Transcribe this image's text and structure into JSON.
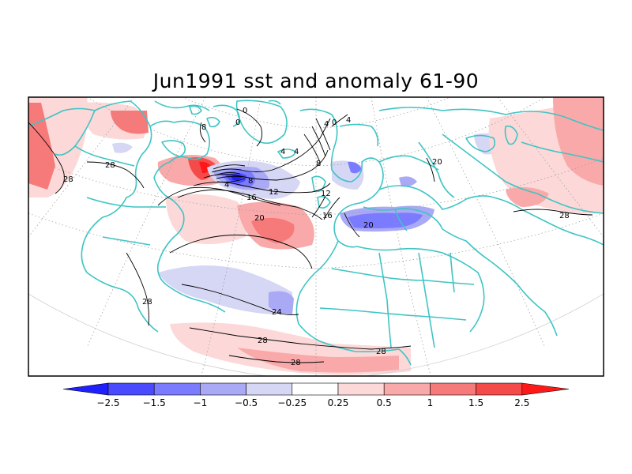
{
  "title": "Jun1991 sst and anomaly 61-90",
  "colors": {
    "coast": "#3fc4c4",
    "frame": "#000000",
    "contour": "#000000",
    "grid": "#9a9a9a",
    "land": "#ffffff",
    "ocean": "#ffffff"
  },
  "colorbar": {
    "levels": [
      "-2.5",
      "-1.5",
      "-1",
      "-0.5",
      "-0.25",
      "0.25",
      "0.5",
      "1",
      "1.5",
      "2.5"
    ],
    "bins": [
      {
        "from": null,
        "to": -2.5,
        "color": "#1f1fff"
      },
      {
        "from": -2.5,
        "to": -1.5,
        "color": "#4a4aff"
      },
      {
        "from": -1.5,
        "to": -1,
        "color": "#7b7bff"
      },
      {
        "from": -1,
        "to": -0.5,
        "color": "#a9a9f5"
      },
      {
        "from": -0.5,
        "to": -0.25,
        "color": "#d6d6f5"
      },
      {
        "from": -0.25,
        "to": 0.25,
        "color": "#ffffff"
      },
      {
        "from": 0.25,
        "to": 0.5,
        "color": "#fcd8d8"
      },
      {
        "from": 0.5,
        "to": 1,
        "color": "#f9a9a9"
      },
      {
        "from": 1,
        "to": 1.5,
        "color": "#f77a7a"
      },
      {
        "from": 1.5,
        "to": 2.5,
        "color": "#f54a4a"
      },
      {
        "from": 2.5,
        "to": null,
        "color": "#ff1818"
      }
    ]
  },
  "contour_labels": [
    "0",
    "0",
    "0",
    "4",
    "4",
    "4",
    "4",
    "4",
    "8",
    "8",
    "8",
    "12",
    "12",
    "16",
    "16",
    "20",
    "20",
    "20",
    "24",
    "28",
    "28",
    "28",
    "28",
    "28",
    "28",
    "28"
  ]
}
